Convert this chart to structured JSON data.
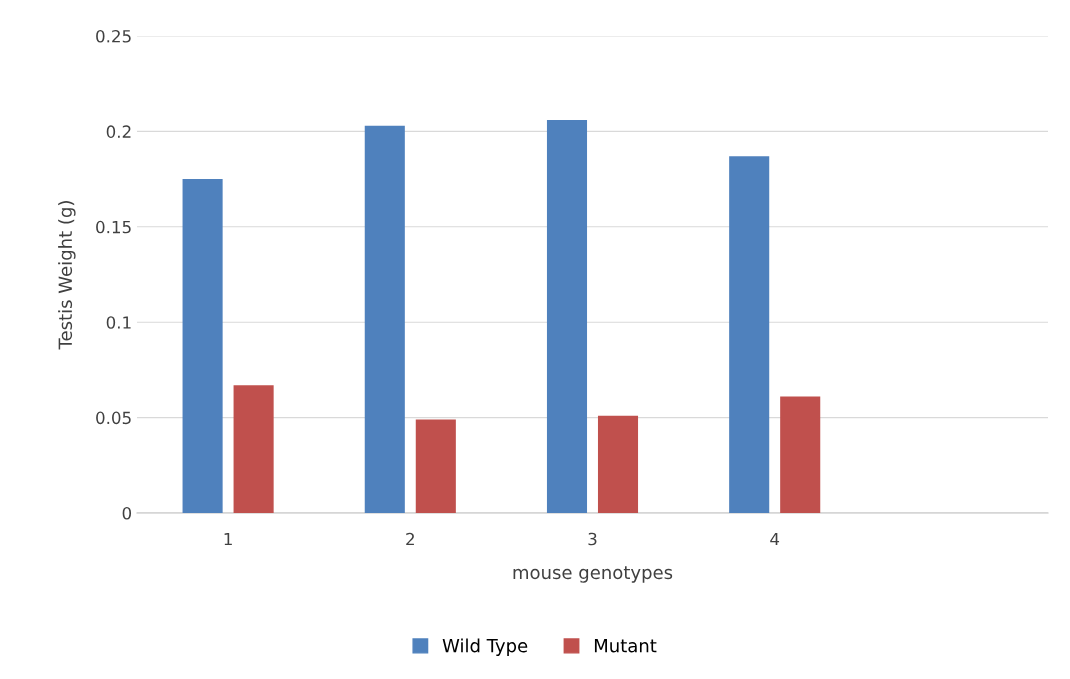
{
  "chart_data": {
    "type": "bar",
    "xlabel": "mouse genotypes",
    "ylabel": "Testis Weight (g)",
    "categories": [
      "1",
      "2",
      "3",
      "4",
      null
    ],
    "series": [
      {
        "name": "Wild Type",
        "color": "#4f81bd",
        "values": [
          0.175,
          0.203,
          0.206,
          0.187,
          null
        ]
      },
      {
        "name": "Mutant",
        "color": "#c0504d",
        "values": [
          0.067,
          0.049,
          0.051,
          0.061,
          null
        ]
      }
    ],
    "ylim": [
      0,
      0.25
    ],
    "yticks": [
      0,
      0.05,
      0.1,
      0.15,
      0.2,
      0.25
    ],
    "grid": "y",
    "legend": "bottom"
  }
}
